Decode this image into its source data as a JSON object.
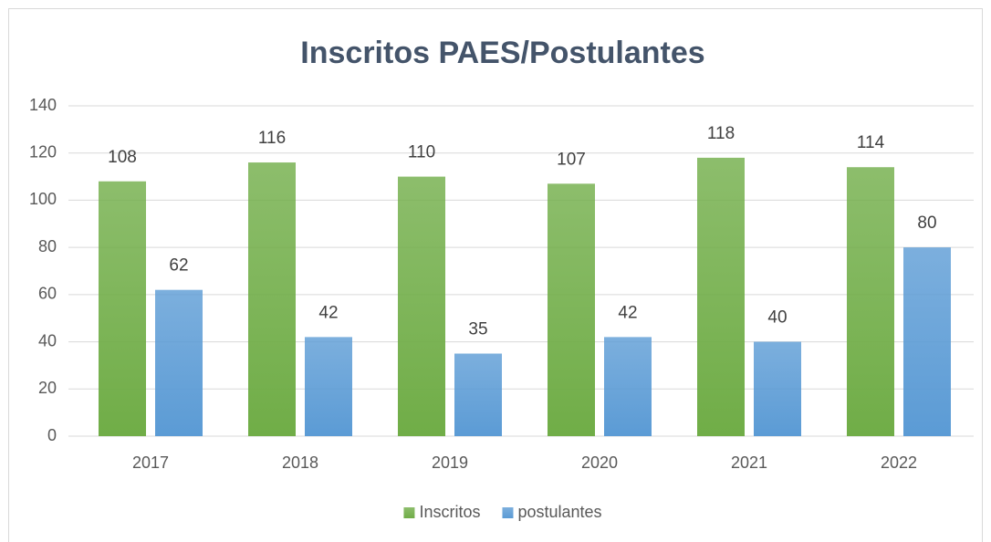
{
  "chart_data": {
    "type": "bar",
    "title": "Inscritos PAES/Postulantes",
    "categories": [
      "2017",
      "2018",
      "2019",
      "2020",
      "2021",
      "2022"
    ],
    "series": [
      {
        "name": "Inscritos",
        "color": "#70ad47",
        "values": [
          108,
          116,
          110,
          107,
          118,
          114
        ]
      },
      {
        "name": "postulantes",
        "color": "#5b9bd5",
        "values": [
          62,
          42,
          35,
          42,
          40,
          80
        ]
      }
    ],
    "ylim": [
      0,
      140
    ],
    "yticks": [
      0,
      20,
      40,
      60,
      80,
      100,
      120,
      140
    ],
    "grid": true,
    "legend": "bottom"
  }
}
